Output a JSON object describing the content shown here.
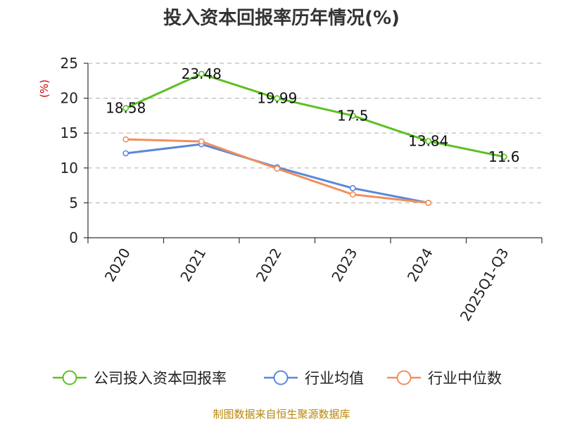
{
  "chart_data": {
    "type": "line",
    "title": "投入资本回报率历年情况(%)",
    "ylabel": "(%)",
    "xlabel": "",
    "ylim": [
      0,
      25
    ],
    "yticks": [
      0,
      5,
      10,
      15,
      20,
      25
    ],
    "grid": true,
    "legend_position": "bottom",
    "categories": [
      "2020",
      "2021",
      "2022",
      "2023",
      "2024",
      "2025Q1-Q3"
    ],
    "series": [
      {
        "name": "公司投入资本回报率",
        "color": "#5cc021",
        "values": [
          18.58,
          23.48,
          19.99,
          17.5,
          13.84,
          11.6
        ],
        "labels": [
          "18.58",
          "23.48",
          "19.99",
          "17.5",
          "13.84",
          "11.6"
        ]
      },
      {
        "name": "行业均值",
        "color": "#5b87d9",
        "values": [
          12.1,
          13.4,
          10.1,
          7.1,
          5.0,
          null
        ]
      },
      {
        "name": "行业中位数",
        "color": "#f28e5b",
        "values": [
          14.1,
          13.8,
          9.9,
          6.2,
          5.0,
          null
        ]
      }
    ],
    "source": "制图数据来自恒生聚源数据库"
  }
}
